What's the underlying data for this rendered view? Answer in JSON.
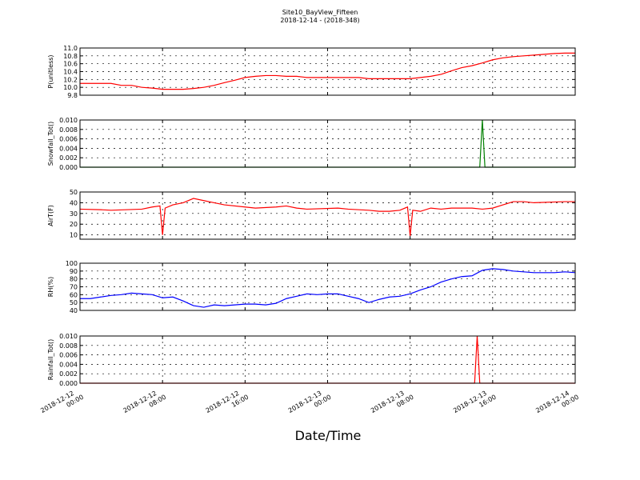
{
  "chart_data": [
    {
      "type": "line",
      "title": "Site10_BayView_Fifteen",
      "subtitle": "2018-12-14 - (2018-348)",
      "y_label": "P(unitless)",
      "x": [
        "2018-12-12 00:00",
        "2018-12-12 03:00",
        "2018-12-12 04:00",
        "2018-12-12 05:00",
        "2018-12-12 06:00",
        "2018-12-12 07:00",
        "2018-12-12 08:00",
        "2018-12-12 10:00",
        "2018-12-12 11:00",
        "2018-12-12 12:00",
        "2018-12-12 13:00",
        "2018-12-12 14:00",
        "2018-12-12 15:00",
        "2018-12-12 16:00",
        "2018-12-12 17:00",
        "2018-12-12 18:00",
        "2018-12-12 19:00",
        "2018-12-12 20:00",
        "2018-12-12 21:00",
        "2018-12-12 22:00",
        "2018-12-13 03:00",
        "2018-12-13 04:00",
        "2018-12-13 08:00",
        "2018-12-13 09:00",
        "2018-12-13 10:00",
        "2018-12-13 11:00",
        "2018-12-13 12:00",
        "2018-12-13 13:00",
        "2018-12-13 14:00",
        "2018-12-13 15:00",
        "2018-12-13 16:00",
        "2018-12-13 17:00",
        "2018-12-13 18:00",
        "2018-12-13 19:00",
        "2018-12-13 20:00",
        "2018-12-13 21:00",
        "2018-12-13 22:00",
        "2018-12-13 23:00",
        "2018-12-14 00:00"
      ],
      "series": [
        {
          "name": "P",
          "color": "#ff0000",
          "values": [
            10.1,
            10.1,
            10.05,
            10.05,
            10.0,
            9.98,
            9.95,
            9.95,
            9.97,
            10.0,
            10.05,
            10.12,
            10.18,
            10.25,
            10.28,
            10.3,
            10.3,
            10.28,
            10.28,
            10.25,
            10.25,
            10.22,
            10.22,
            10.25,
            10.28,
            10.33,
            10.42,
            10.5,
            10.55,
            10.62,
            10.7,
            10.75,
            10.78,
            10.8,
            10.82,
            10.84,
            10.86,
            10.87,
            10.87
          ]
        }
      ],
      "xlim": [
        "2018-12-12 00:00",
        "2018-12-14 00:00"
      ],
      "ylim": [
        9.8,
        11.0
      ],
      "yticks": [
        9.8,
        {
          "value": 10,
          "label": "10.0"
        },
        10.2,
        10.4,
        10.6,
        10.8,
        {
          "value": 11,
          "label": "11.0"
        }
      ],
      "grid": true
    },
    {
      "type": "line",
      "y_label": "Snowfall_Tot()",
      "x": [
        "2018-12-12 00:00",
        "2018-12-13 14:45",
        "2018-12-13 15:00",
        "2018-12-13 15:15",
        "2018-12-14 00:00"
      ],
      "series": [
        {
          "name": "Snowfall_Tot",
          "color": "#008000",
          "values": [
            0,
            0,
            0.01,
            0,
            0
          ]
        }
      ],
      "xlim": [
        "2018-12-12 00:00",
        "2018-12-14 00:00"
      ],
      "ylim": [
        0,
        0.01
      ],
      "yticks": [
        {
          "value": 0,
          "label": "0.000"
        },
        {
          "value": 0.002,
          "label": "0.002"
        },
        {
          "value": 0.004,
          "label": "0.004"
        },
        {
          "value": 0.006,
          "label": "0.006"
        },
        {
          "value": 0.008,
          "label": "0.008"
        },
        {
          "value": 0.01,
          "label": "0.010"
        }
      ],
      "grid": true
    },
    {
      "type": "line",
      "y_label": "AirT(F)",
      "x": [
        "2018-12-12 00:00",
        "2018-12-12 02:00",
        "2018-12-12 03:00",
        "2018-12-12 06:00",
        "2018-12-12 07:00",
        "2018-12-12 07:45",
        "2018-12-12 08:00",
        "2018-12-12 08:15",
        "2018-12-12 09:00",
        "2018-12-12 10:00",
        "2018-12-12 11:00",
        "2018-12-12 12:00",
        "2018-12-12 13:00",
        "2018-12-12 14:00",
        "2018-12-12 16:00",
        "2018-12-12 17:00",
        "2018-12-12 19:00",
        "2018-12-12 20:00",
        "2018-12-12 21:00",
        "2018-12-12 22:00",
        "2018-12-13 01:00",
        "2018-12-13 02:00",
        "2018-12-13 04:00",
        "2018-12-13 05:00",
        "2018-12-13 06:00",
        "2018-12-13 07:00",
        "2018-12-13 07:45",
        "2018-12-13 08:00",
        "2018-12-13 08:15",
        "2018-12-13 09:00",
        "2018-12-13 10:00",
        "2018-12-13 11:00",
        "2018-12-13 12:00",
        "2018-12-13 13:00",
        "2018-12-13 14:00",
        "2018-12-13 15:00",
        "2018-12-13 16:00",
        "2018-12-13 17:00",
        "2018-12-13 18:00",
        "2018-12-13 19:00",
        "2018-12-13 20:00",
        "2018-12-13 23:00",
        "2018-12-14 00:00"
      ],
      "series": [
        {
          "name": "AirT",
          "color": "#ff0000",
          "values": [
            34,
            33.5,
            33,
            34,
            36,
            37,
            10,
            35,
            38,
            40,
            44,
            42,
            40,
            38,
            36,
            35,
            36,
            37,
            35,
            34,
            35,
            34,
            33,
            32,
            32,
            33,
            36,
            9,
            33,
            32,
            35,
            34,
            35,
            35,
            35,
            34,
            35,
            38,
            41,
            41,
            40,
            41,
            41
          ]
        }
      ],
      "xlim": [
        "2018-12-12 00:00",
        "2018-12-14 00:00"
      ],
      "ylim": [
        6,
        50
      ],
      "yticks": [
        10,
        20,
        30,
        40,
        50
      ],
      "grid": true
    },
    {
      "type": "line",
      "y_label": "RH(%)",
      "x": [
        "2018-12-12 00:00",
        "2018-12-12 01:00",
        "2018-12-12 02:00",
        "2018-12-12 03:00",
        "2018-12-12 04:00",
        "2018-12-12 05:00",
        "2018-12-12 06:00",
        "2018-12-12 07:00",
        "2018-12-12 08:00",
        "2018-12-12 09:00",
        "2018-12-12 10:00",
        "2018-12-12 11:00",
        "2018-12-12 12:00",
        "2018-12-12 13:00",
        "2018-12-12 14:00",
        "2018-12-12 15:00",
        "2018-12-12 16:00",
        "2018-12-12 17:00",
        "2018-12-12 18:00",
        "2018-12-12 19:00",
        "2018-12-12 20:00",
        "2018-12-12 21:00",
        "2018-12-12 22:00",
        "2018-12-12 23:00",
        "2018-12-13 00:00",
        "2018-12-13 01:00",
        "2018-12-13 02:00",
        "2018-12-13 03:00",
        "2018-12-13 04:00",
        "2018-12-13 05:00",
        "2018-12-13 06:00",
        "2018-12-13 07:00",
        "2018-12-13 08:00",
        "2018-12-13 09:00",
        "2018-12-13 10:00",
        "2018-12-13 11:00",
        "2018-12-13 12:00",
        "2018-12-13 13:00",
        "2018-12-13 14:00",
        "2018-12-13 15:00",
        "2018-12-13 16:00",
        "2018-12-13 17:00",
        "2018-12-13 18:00",
        "2018-12-13 19:00",
        "2018-12-13 20:00",
        "2018-12-13 21:00",
        "2018-12-13 22:00",
        "2018-12-13 23:00",
        "2018-12-14 00:00"
      ],
      "series": [
        {
          "name": "RH",
          "color": "#0000ff",
          "values": [
            55,
            55,
            57,
            59,
            60,
            62,
            61,
            60,
            56,
            57,
            52,
            46,
            44,
            47,
            46,
            47,
            48,
            48,
            47,
            49,
            55,
            58,
            61,
            60,
            61,
            61,
            58,
            55,
            50,
            54,
            57,
            58,
            61,
            66,
            70,
            76,
            80,
            83,
            84,
            91,
            93,
            92,
            90,
            89,
            88,
            88,
            88,
            89,
            88
          ]
        }
      ],
      "xlim": [
        "2018-12-12 00:00",
        "2018-12-14 00:00"
      ],
      "ylim": [
        40,
        100
      ],
      "yticks": [
        40,
        50,
        60,
        70,
        80,
        90,
        100
      ],
      "grid": true
    },
    {
      "type": "line",
      "y_label": "Rainfall_Tot()",
      "x_label": "Date/Time",
      "x": [
        "2018-12-12 00:00",
        "2018-12-13 14:15",
        "2018-12-13 14:30",
        "2018-12-13 14:45",
        "2018-12-14 00:00"
      ],
      "series": [
        {
          "name": "Rainfall_Tot",
          "color": "#ff0000",
          "values": [
            0,
            0,
            0.01,
            0,
            0
          ]
        }
      ],
      "xlim": [
        "2018-12-12 00:00",
        "2018-12-14 00:00"
      ],
      "ylim": [
        0,
        0.01
      ],
      "xticks": [
        "2018-12-12 00:00",
        "2018-12-12 08:00",
        "2018-12-12 16:00",
        "2018-12-13 00:00",
        "2018-12-13 08:00",
        "2018-12-13 16:00",
        "2018-12-14 00:00"
      ],
      "yticks": [
        {
          "value": 0,
          "label": "0.000"
        },
        {
          "value": 0.002,
          "label": "0.002"
        },
        {
          "value": 0.004,
          "label": "0.004"
        },
        {
          "value": 0.006,
          "label": "0.006"
        },
        {
          "value": 0.008,
          "label": "0.008"
        },
        {
          "value": 0.01,
          "label": "0.010"
        }
      ],
      "grid": true
    }
  ]
}
